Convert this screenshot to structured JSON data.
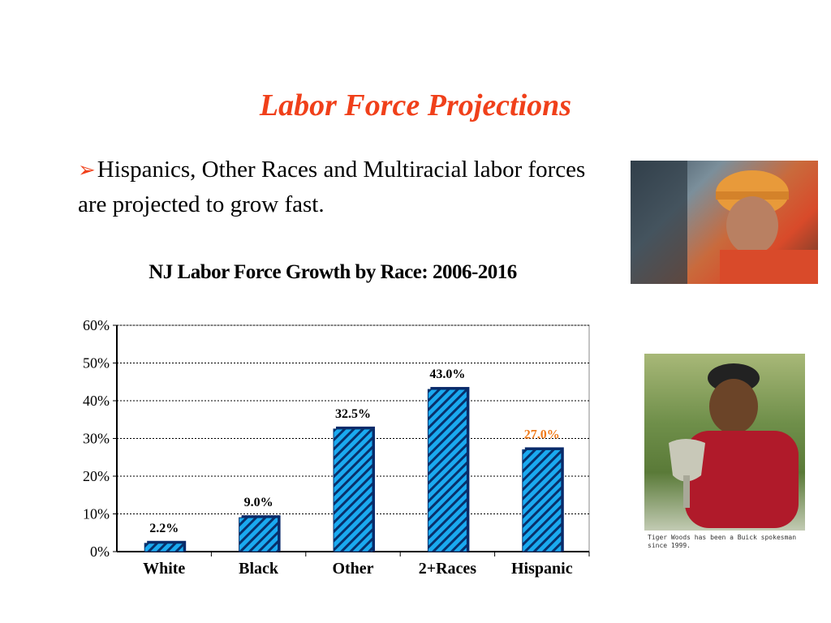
{
  "slide": {
    "title": "Labor Force Projections",
    "bullet_text": "Hispanics, Other Races and Multiracial labor forces are projected to grow fast."
  },
  "images": {
    "worker_photo": "construction-worker-photo",
    "golfer_photo": "golfer-with-trophy-photo",
    "golfer_caption": "Tiger Woods has been a Buick spokesman since 1999."
  },
  "colors": {
    "title": "#f0401a",
    "bar_fill": "#1aaaf0",
    "bar_stripe": "#08306b",
    "highlight_label": "#f07a1a"
  },
  "chart_data": {
    "type": "bar",
    "title": "NJ Labor Force Growth by Race: 2006-2016",
    "categories": [
      "White",
      "Black",
      "Other",
      "2+Races",
      "Hispanic"
    ],
    "values": [
      2.2,
      9.0,
      32.5,
      43.0,
      27.0
    ],
    "value_labels": [
      "2.2%",
      "9.0%",
      "32.5%",
      "43.0%",
      "27.0%"
    ],
    "highlight_index": 4,
    "ylim": [
      0,
      60
    ],
    "yticks": [
      "0%",
      "10%",
      "20%",
      "30%",
      "40%",
      "50%",
      "60%"
    ],
    "xlabel": "",
    "ylabel": "",
    "grid": "horizontal-dotted",
    "legend": "none"
  }
}
